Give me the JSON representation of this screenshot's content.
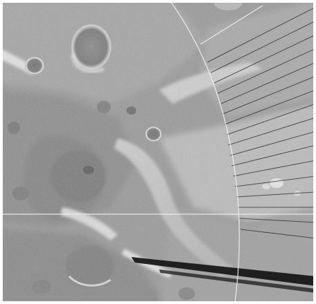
{
  "image": {
    "description_palette": {
      "background": "#ffffff",
      "terrain_base": "#9a9a9a",
      "terrain_light": "#d8d8d8",
      "terrain_dark": "#5e5e5e",
      "grid_line": "#e6e6e6",
      "streak": "#1a1a1a"
    }
  }
}
